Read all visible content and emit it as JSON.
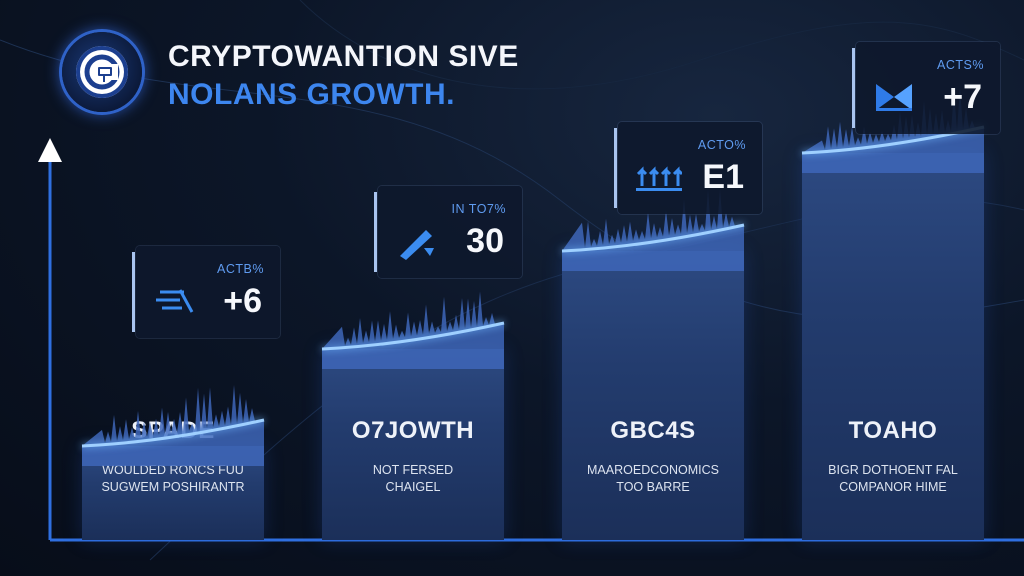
{
  "header": {
    "title_line1": "CRYPTOWANTION SIVE",
    "title_line2": "NOLANS GROWTH.",
    "logo_icon": "crypto-coin-logo-icon"
  },
  "colors": {
    "accent_blue": "#3d86ef",
    "bar_top": "#2d4a82",
    "bar_bottom": "#1b2f59",
    "crest_line": "#9fd0ff",
    "background": "#0c1628"
  },
  "chart_data": {
    "type": "bar",
    "title": "",
    "xlabel": "",
    "ylabel": "",
    "categories": [
      "SPADE",
      "O7JOWTH",
      "GBC4S",
      "TOAHO"
    ],
    "values": [
      1,
      2,
      3,
      4
    ],
    "ylim": [
      0,
      4.3
    ],
    "axis": "left arrow axis with baseline, no ticks",
    "grid": false,
    "bars": [
      {
        "name": "SPADE",
        "description": "WOULDED RONCS FUU\nSUGWEM POSHIRANTR",
        "callout_label": "ACTB%",
        "callout_value": "+6",
        "callout_icon": "speed-lines-icon"
      },
      {
        "name": "O7JOWTH",
        "description": "NOT FERSED\nCHAIGEL",
        "callout_label": "IN TO7%",
        "callout_value": "30",
        "callout_icon": "pen-arrow-icon"
      },
      {
        "name": "GBC4S",
        "description": "MAAROEDCONOMICS\nTOO BARRE",
        "callout_label": "ACTO%",
        "callout_value": "E1",
        "callout_icon": "up-arrows-icon"
      },
      {
        "name": "TOAHO",
        "description": "BIGR DOTHOENT FAL\nCOMPANOR HIME",
        "callout_label": "ACTS%",
        "callout_value": "+7",
        "callout_icon": "bowtie-icon"
      }
    ]
  }
}
